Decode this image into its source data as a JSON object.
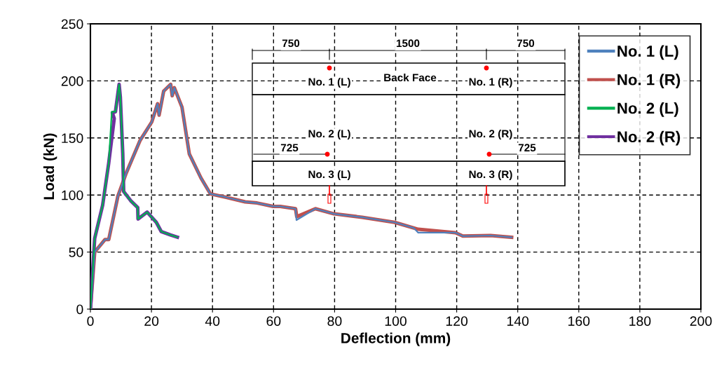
{
  "chart_data": {
    "type": "line",
    "xlabel": "Deflection (mm)",
    "ylabel": "Load (kN)",
    "xlim": [
      0,
      200
    ],
    "xticks": [
      0,
      20,
      40,
      60,
      80,
      100,
      120,
      140,
      160,
      180,
      200
    ],
    "ylim": [
      0,
      250
    ],
    "yticks": [
      0,
      50,
      100,
      150,
      200,
      250
    ],
    "grid": true,
    "legend": "top right",
    "line_style": "solid",
    "series": [
      {
        "name": "No. 1 (L)",
        "color": "#4f81bd",
        "x": [
          0,
          1.4,
          4.8,
          6.0,
          8.7,
          9.0,
          11.7,
          16.3,
          20.1,
          22,
          22.5,
          24,
          26.3,
          26.8,
          27.5,
          30,
          32.4,
          36.2,
          39.3,
          44.5,
          50.7,
          54.6,
          59.9,
          62.2,
          67.2,
          67.5,
          73.7,
          79.8,
          89,
          99.7,
          106,
          107.4,
          119.6,
          122,
          131.1,
          138
        ],
        "values": [
          0,
          50,
          61,
          61,
          95,
          99,
          119,
          148,
          164,
          180,
          170,
          191,
          197,
          187,
          194,
          177,
          136,
          115,
          101,
          98,
          94,
          93,
          90,
          90,
          88,
          78,
          88,
          83.5,
          80.5,
          76,
          71,
          67,
          67,
          64,
          64.5,
          63
        ]
      },
      {
        "name": "No. 1 (R)",
        "color": "#c0504d",
        "x": [
          0,
          1.4,
          4.8,
          6.0,
          8.7,
          9.0,
          11.7,
          16.3,
          20.1,
          22,
          22.5,
          24,
          26.3,
          26.8,
          27.5,
          30,
          32.4,
          36.2,
          39.3,
          44.5,
          50.7,
          54.6,
          59.9,
          62.2,
          67.2,
          67.6,
          73.7,
          79.8,
          89,
          99.7,
          107.4,
          119.6,
          122,
          131.1,
          138
        ],
        "values": [
          0,
          50,
          61,
          61,
          95,
          99,
          119,
          148,
          164,
          180,
          170,
          191,
          197,
          187,
          194,
          177,
          136,
          115,
          101,
          98,
          94,
          93,
          90,
          90,
          88,
          81,
          88,
          83.5,
          80.5,
          76,
          70,
          67,
          64,
          64.5,
          63
        ]
      },
      {
        "name": "No. 2 (L)",
        "color": "#00b050",
        "x": [
          0,
          1.4,
          4.0,
          6.0,
          7.0,
          8.2,
          9.4,
          9.8,
          10.6,
          10.9,
          13.2,
          15.5,
          15.6,
          18.6,
          21.6,
          23.2,
          26.2,
          28.5
        ],
        "values": [
          0,
          62,
          91,
          128,
          173,
          173,
          197,
          186,
          136,
          103,
          95,
          89,
          79,
          85,
          76,
          68,
          65,
          63
        ]
      },
      {
        "name": "No. 2 (R)",
        "color": "#7030a0",
        "x": [
          0,
          1.4,
          4.0,
          6.0,
          7.8,
          7.2,
          8.2,
          9.4,
          9.8,
          10.6,
          10.9,
          13.2,
          15.5,
          15.6,
          18.6,
          21.6,
          23.2,
          26.2,
          28.5
        ],
        "values": [
          0,
          62,
          91,
          128,
          167,
          172,
          173,
          197,
          186,
          136,
          103,
          95,
          89,
          79,
          85,
          76,
          68,
          65,
          63
        ]
      }
    ],
    "annotations": [
      "750",
      "1500",
      "750",
      "No. 1 (L)",
      "Back Face",
      "No. 1 (R)",
      "No. 2 (L)",
      "No. 2 (R)",
      "725",
      "725",
      "No. 3 (L)",
      "No. 3 (R)"
    ]
  }
}
